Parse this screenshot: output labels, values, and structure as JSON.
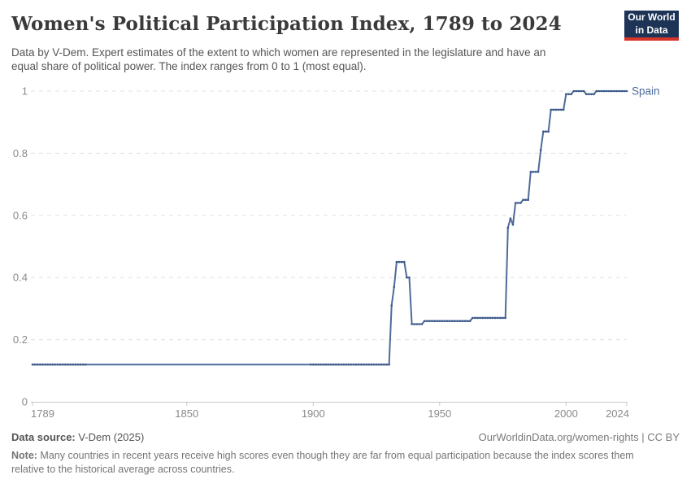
{
  "header": {
    "title": "Women's Political Participation Index, 1789 to 2024",
    "subtitle_line1": "Data by V-Dem. Expert estimates of the extent to which women are represented in the legislature and have an",
    "subtitle_line2": "equal share of political power. The index ranges from 0 to 1 (most equal).",
    "logo_line1": "Our World",
    "logo_line2": "in Data"
  },
  "footer": {
    "source_label": "Data source:",
    "source_value": " V-Dem (2025)",
    "link": "OurWorldinData.org/women-rights | CC BY",
    "note_label": "Note:",
    "note_line1": " Many countries in recent years receive high scores even though they are far from equal participation because the index scores them",
    "note_line2": "relative to the historical average across countries."
  },
  "chart_data": {
    "type": "line",
    "title": "Women's Political Participation Index, 1789 to 2024",
    "series_label": "Spain",
    "xlabel": "",
    "ylabel": "",
    "xlim": [
      1789,
      2024
    ],
    "ylim": [
      0,
      1
    ],
    "xticks": [
      1789,
      1850,
      1900,
      1950,
      2000,
      2024
    ],
    "yticks": [
      0,
      0.2,
      0.4,
      0.6,
      0.8,
      1
    ],
    "ytick_labels": [
      "0",
      "0.2",
      "0.4",
      "0.6",
      "0.8",
      "1"
    ],
    "grid": "horizontal-dashed",
    "legend_position": "end-of-line-label",
    "segments_note": "year-ranges with constant index value [startYear, endYear, value]",
    "segments": [
      [
        1789,
        1930,
        0.12
      ],
      [
        1931,
        1931,
        0.31
      ],
      [
        1932,
        1932,
        0.37
      ],
      [
        1933,
        1936,
        0.45
      ],
      [
        1937,
        1938,
        0.4
      ],
      [
        1939,
        1943,
        0.25
      ],
      [
        1944,
        1962,
        0.26
      ],
      [
        1963,
        1976,
        0.27
      ],
      [
        1977,
        1977,
        0.56
      ],
      [
        1978,
        1978,
        0.59
      ],
      [
        1979,
        1979,
        0.57
      ],
      [
        1980,
        1982,
        0.64
      ],
      [
        1983,
        1985,
        0.65
      ],
      [
        1986,
        1989,
        0.74
      ],
      [
        1990,
        1990,
        0.81
      ],
      [
        1991,
        1993,
        0.87
      ],
      [
        1994,
        1999,
        0.94
      ],
      [
        2000,
        2002,
        0.99
      ],
      [
        2003,
        2007,
        1.0
      ],
      [
        2008,
        2011,
        0.99
      ],
      [
        2012,
        2024,
        1.0
      ]
    ],
    "marker_year_ranges": [
      [
        1789,
        1810
      ],
      [
        1899,
        2024
      ]
    ],
    "line_color": "#4e6b99",
    "marker_color": "#3d5a8a",
    "label_color": "#4c6a9c",
    "gridline_color": "#e0e0e0",
    "axis_color": "#c8c8c8",
    "tick_text_color": "#8a8a8a"
  }
}
